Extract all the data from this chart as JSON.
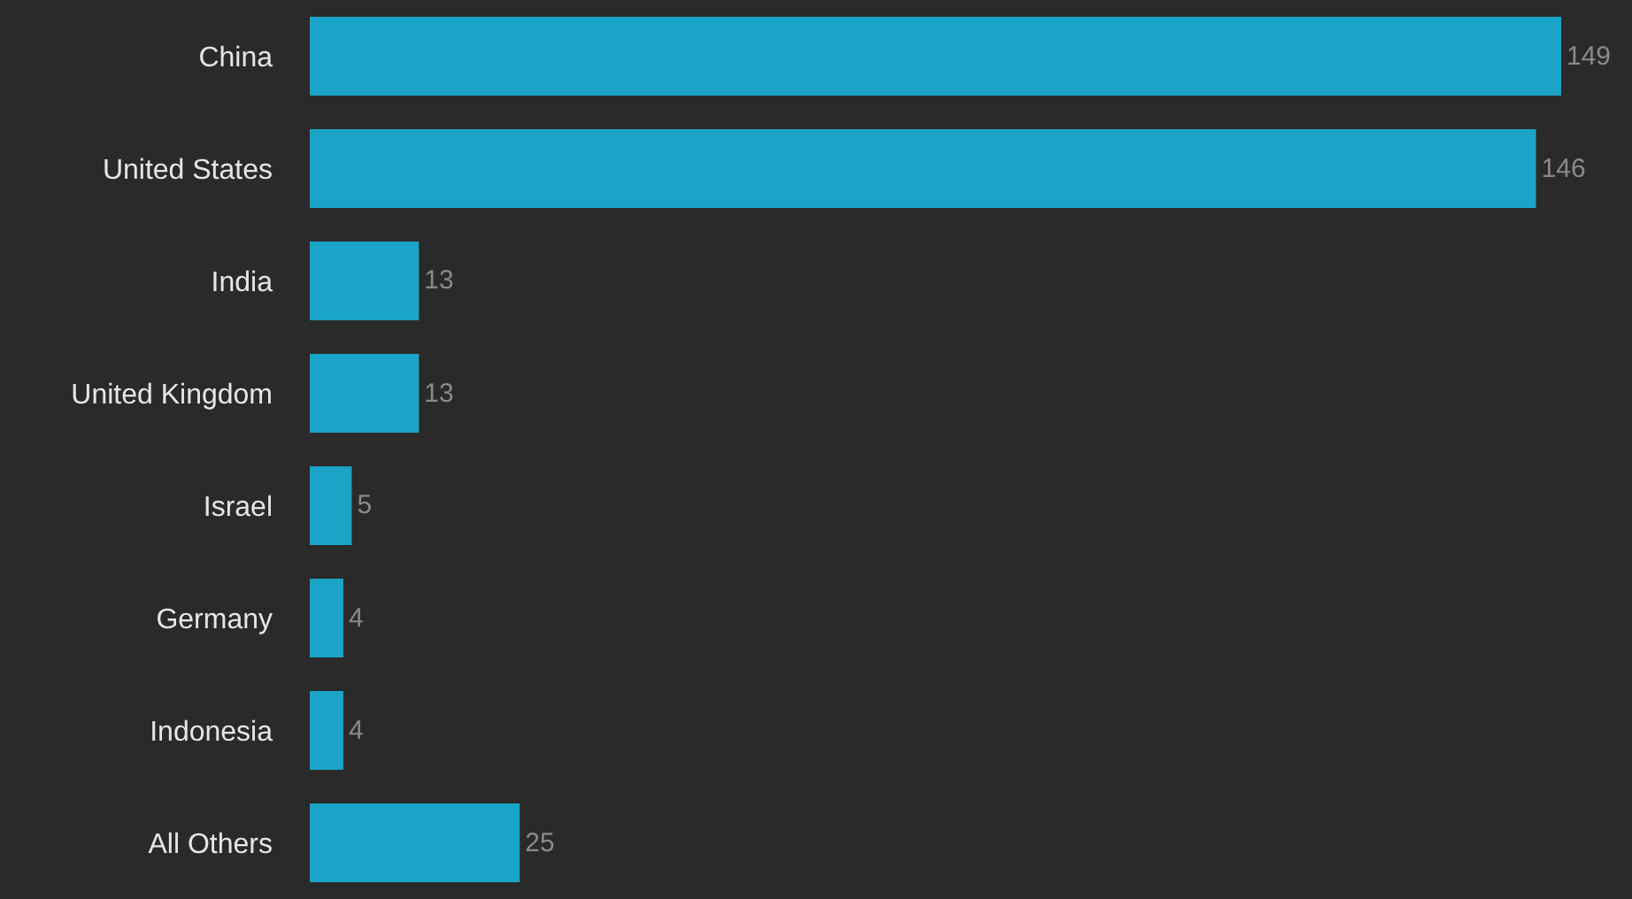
{
  "chart_data": {
    "type": "bar",
    "orientation": "horizontal",
    "categories": [
      "China",
      "United States",
      "India",
      "United Kingdom",
      "Israel",
      "Germany",
      "Indonesia",
      "All Others"
    ],
    "values": [
      149,
      146,
      13,
      13,
      5,
      4,
      4,
      25
    ],
    "color": "#1aa5c8",
    "data_labels": true
  }
}
